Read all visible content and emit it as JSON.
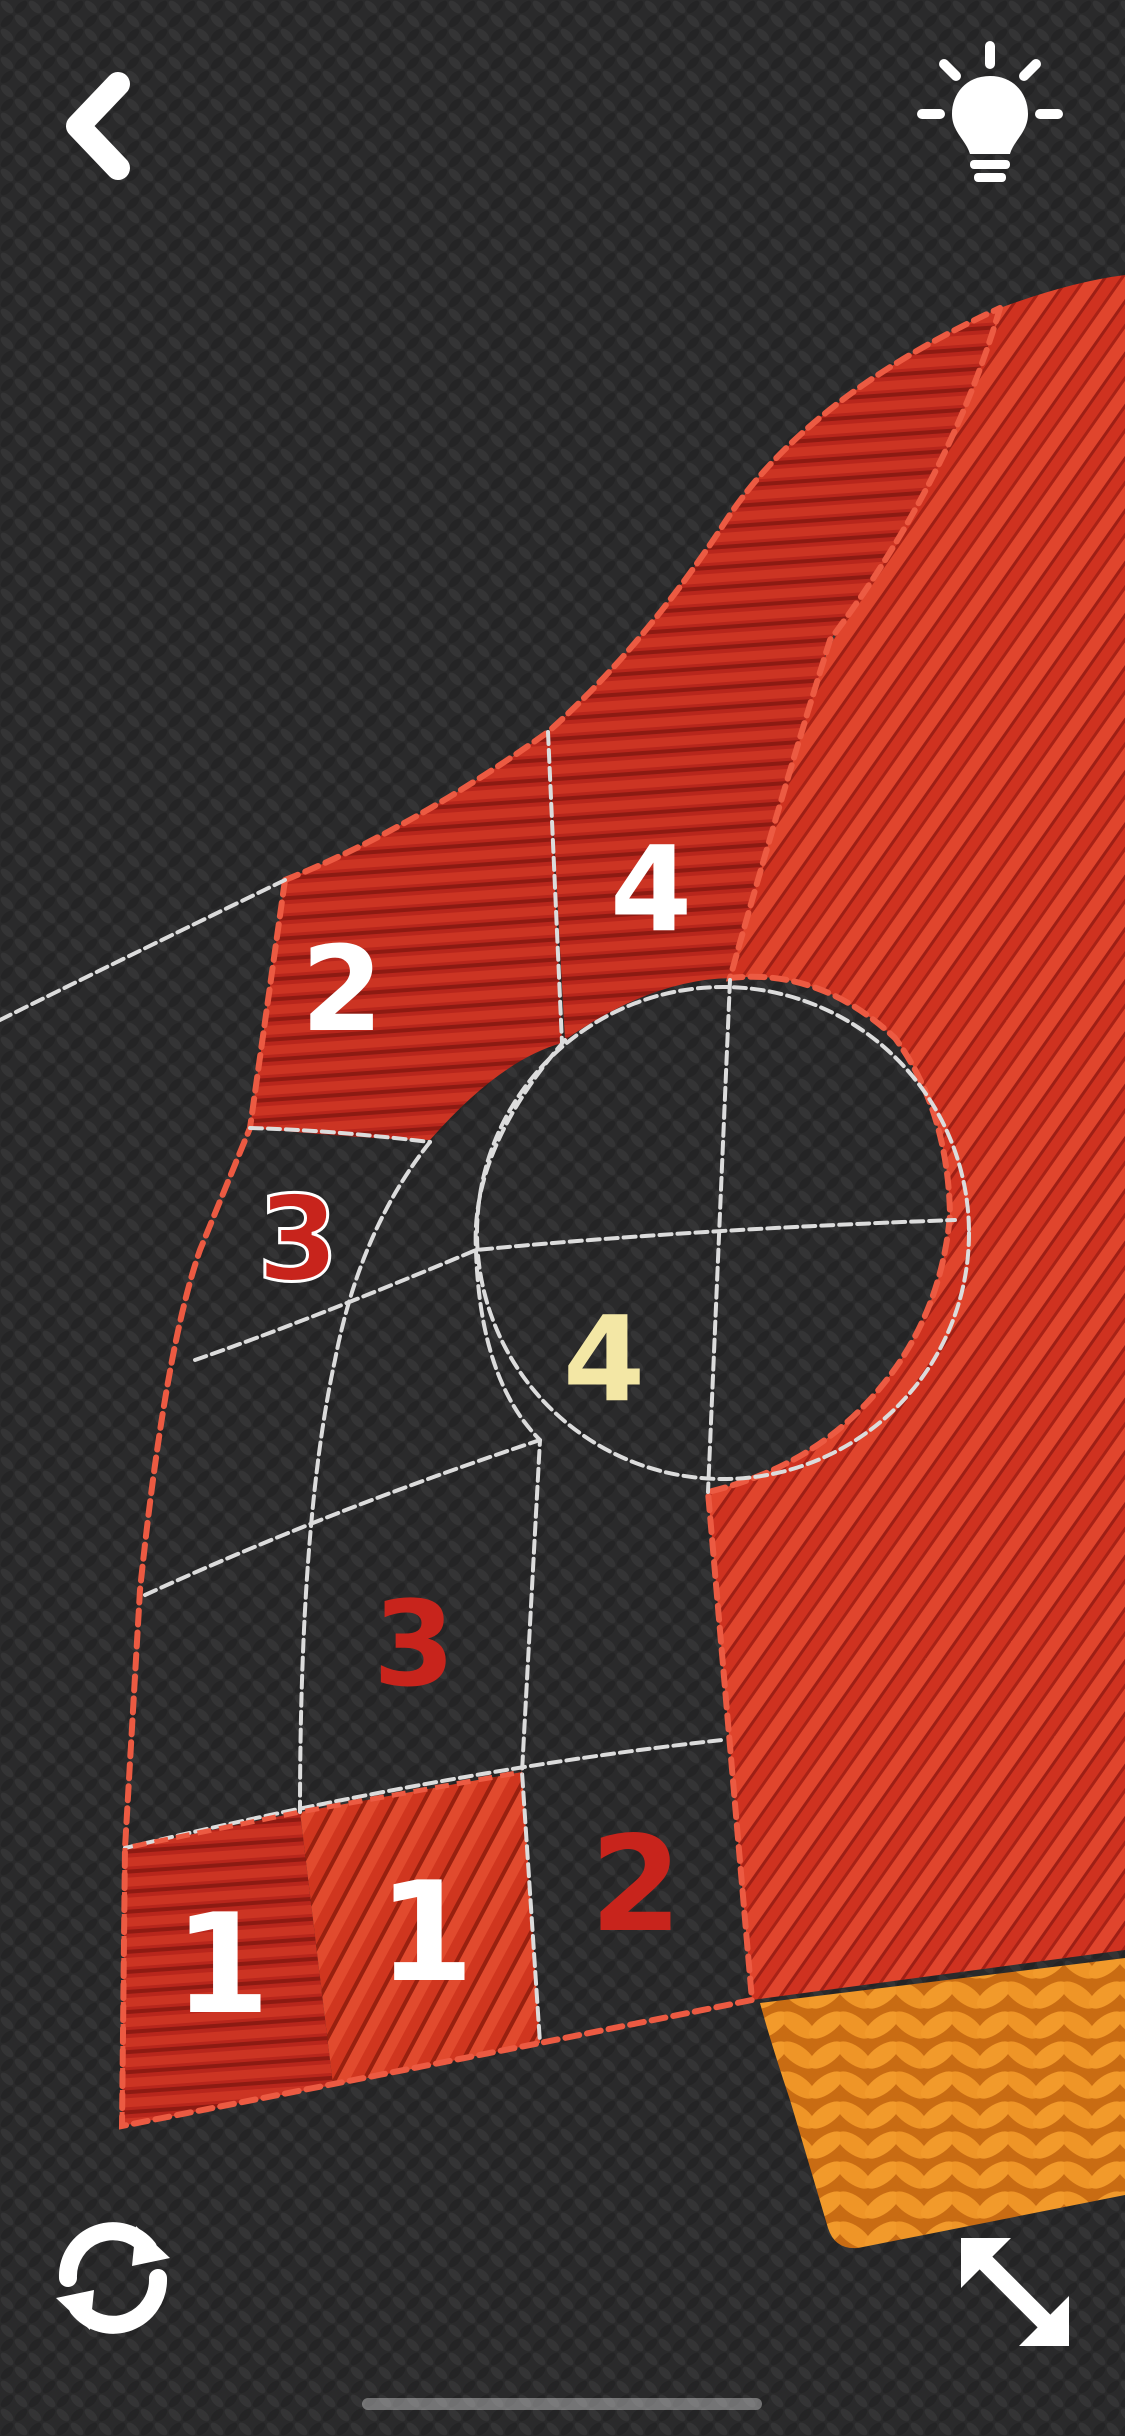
{
  "screen": {
    "name": "thread-coloring-puzzle"
  },
  "toolbar": {
    "back_icon": "chevron-left-icon",
    "hint_icon": "lightbulb-icon",
    "rotate_icon": "rotate-arrows-icon",
    "expand_icon": "expand-arrows-icon"
  },
  "colors": {
    "background": "#2a2a2b",
    "thread_red": "#d23421",
    "thread_dark_red": "#b8241c",
    "thread_orange": "#e8891f",
    "number_white": "#ffffff",
    "number_red": "#c8241c",
    "number_cream": "#f3e7a5",
    "stitch_line": "#d8d8d8",
    "border_stitch": "#e8513c"
  },
  "regions": {
    "r1": "2",
    "r2": "4",
    "r3": "3",
    "r4": "4",
    "r5": "3",
    "r6": "1",
    "r7": "1",
    "r8": "2"
  }
}
